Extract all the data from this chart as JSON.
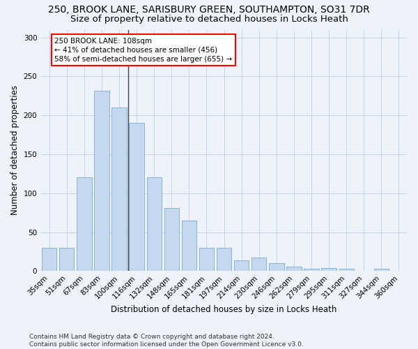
{
  "title": "250, BROOK LANE, SARISBURY GREEN, SOUTHAMPTON, SO31 7DR",
  "subtitle": "Size of property relative to detached houses in Locks Heath",
  "xlabel": "Distribution of detached houses by size in Locks Heath",
  "ylabel": "Number of detached properties",
  "categories": [
    "35sqm",
    "51sqm",
    "67sqm",
    "83sqm",
    "100sqm",
    "116sqm",
    "132sqm",
    "148sqm",
    "165sqm",
    "181sqm",
    "197sqm",
    "214sqm",
    "230sqm",
    "246sqm",
    "262sqm",
    "279sqm",
    "295sqm",
    "311sqm",
    "327sqm",
    "344sqm",
    "360sqm"
  ],
  "values": [
    30,
    30,
    120,
    232,
    210,
    190,
    120,
    81,
    65,
    30,
    30,
    14,
    17,
    10,
    6,
    3,
    4,
    3,
    0,
    3,
    0
  ],
  "bar_color": "#c5d8f0",
  "bar_edge_color": "#7aadd4",
  "annotation_text": "250 BROOK LANE: 108sqm\n← 41% of detached houses are smaller (456)\n58% of semi-detached houses are larger (655) →",
  "vline_x": 4.5,
  "ylim": [
    0,
    310
  ],
  "yticks": [
    0,
    50,
    100,
    150,
    200,
    250,
    300
  ],
  "footer": "Contains HM Land Registry data © Crown copyright and database right 2024.\nContains public sector information licensed under the Open Government Licence v3.0.",
  "bg_color": "#eef2fa",
  "grid_color": "#c8d4e8",
  "title_fontsize": 10,
  "subtitle_fontsize": 9.5,
  "label_fontsize": 8.5,
  "tick_fontsize": 7.5,
  "footer_fontsize": 6.5,
  "annotation_fontsize": 7.5
}
